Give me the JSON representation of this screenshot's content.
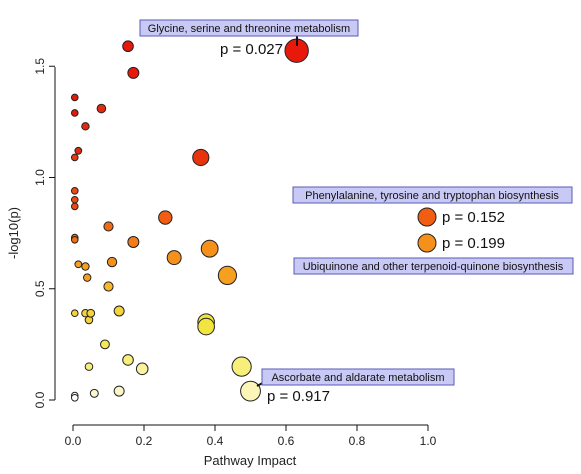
{
  "chart_data": {
    "type": "scatter",
    "xlabel": "Pathway Impact",
    "ylabel": "-log10(p)",
    "xlim": [
      0.0,
      1.0
    ],
    "ylim": [
      0.0,
      1.6
    ],
    "xticks": [
      "0.0",
      "0.2",
      "0.4",
      "0.6",
      "0.8",
      "1.0"
    ],
    "yticks": [
      "0.0",
      "0.5",
      "1.0",
      "1.5"
    ],
    "points": [
      {
        "x": 0.63,
        "y": 1.57,
        "color": "#e8190b"
      },
      {
        "x": 0.155,
        "y": 1.59,
        "color": "#e8190b"
      },
      {
        "x": 0.17,
        "y": 1.47,
        "color": "#e8190b"
      },
      {
        "x": 0.005,
        "y": 1.36,
        "color": "#e11a0a"
      },
      {
        "x": 0.08,
        "y": 1.31,
        "color": "#e32a0f"
      },
      {
        "x": 0.005,
        "y": 1.29,
        "color": "#e11a0a"
      },
      {
        "x": 0.035,
        "y": 1.23,
        "color": "#e32a0f"
      },
      {
        "x": 0.015,
        "y": 1.12,
        "color": "#e32a0f"
      },
      {
        "x": 0.005,
        "y": 1.09,
        "color": "#e83a10"
      },
      {
        "x": 0.36,
        "y": 1.09,
        "color": "#e8330f"
      },
      {
        "x": 0.005,
        "y": 0.94,
        "color": "#ed4a12"
      },
      {
        "x": 0.005,
        "y": 0.9,
        "color": "#ed4a12"
      },
      {
        "x": 0.005,
        "y": 0.87,
        "color": "#ed4a12"
      },
      {
        "x": 0.26,
        "y": 0.82,
        "color": "#f05d13"
      },
      {
        "x": 0.1,
        "y": 0.78,
        "color": "#f06a15"
      },
      {
        "x": 0.005,
        "y": 0.73,
        "color": "#f07015"
      },
      {
        "x": 0.005,
        "y": 0.72,
        "color": "#f07015"
      },
      {
        "x": 0.17,
        "y": 0.71,
        "color": "#f37b18"
      },
      {
        "x": 0.385,
        "y": 0.68,
        "color": "#f5901a"
      },
      {
        "x": 0.285,
        "y": 0.64,
        "color": "#f5901a"
      },
      {
        "x": 0.11,
        "y": 0.62,
        "color": "#f5901a"
      },
      {
        "x": 0.015,
        "y": 0.61,
        "color": "#f7a01f"
      },
      {
        "x": 0.035,
        "y": 0.6,
        "color": "#f7a01f"
      },
      {
        "x": 0.435,
        "y": 0.56,
        "color": "#f7a01f"
      },
      {
        "x": 0.04,
        "y": 0.55,
        "color": "#f7a01f"
      },
      {
        "x": 0.1,
        "y": 0.51,
        "color": "#f9b72a"
      },
      {
        "x": 0.005,
        "y": 0.39,
        "color": "#f5d33a"
      },
      {
        "x": 0.035,
        "y": 0.39,
        "color": "#f5d33a"
      },
      {
        "x": 0.05,
        "y": 0.39,
        "color": "#f5d33a"
      },
      {
        "x": 0.13,
        "y": 0.4,
        "color": "#f5d33a"
      },
      {
        "x": 0.045,
        "y": 0.36,
        "color": "#f5d33a"
      },
      {
        "x": 0.375,
        "y": 0.35,
        "color": "#f2e53f"
      },
      {
        "x": 0.375,
        "y": 0.33,
        "color": "#f2e53f"
      },
      {
        "x": 0.09,
        "y": 0.25,
        "color": "#f4ea55"
      },
      {
        "x": 0.155,
        "y": 0.18,
        "color": "#f7ef7a"
      },
      {
        "x": 0.045,
        "y": 0.15,
        "color": "#f7ef7a"
      },
      {
        "x": 0.475,
        "y": 0.15,
        "color": "#f7ef7a"
      },
      {
        "x": 0.195,
        "y": 0.14,
        "color": "#f9f3a0"
      },
      {
        "x": 0.5,
        "y": 0.04,
        "color": "#fbf6b8"
      },
      {
        "x": 0.13,
        "y": 0.04,
        "color": "#fbf6c8"
      },
      {
        "x": 0.06,
        "y": 0.03,
        "color": "#fbf6d0"
      },
      {
        "x": 0.005,
        "y": 0.02,
        "color": "#ffffff"
      },
      {
        "x": 0.005,
        "y": 0.01,
        "color": "#ffffff"
      }
    ],
    "annotations": [
      {
        "label": "Glycine, serine and threonine metabolism",
        "pvalue": "p = 0.027",
        "x": 0.63,
        "y": 1.57
      },
      {
        "label": "Phenylalanine, tyrosine and tryptophan biosynthesis",
        "pvalue": "p = 0.152"
      },
      {
        "label": "Ubiquinone and other terpenoid-quinone biosynthesis",
        "pvalue": "p = 0.199"
      },
      {
        "label": "Ascorbate and aldarate metabolism",
        "pvalue": "p = 0.917",
        "x": 0.5,
        "y": 0.04
      }
    ],
    "colors": {
      "label_box_fill": "#c9c9f5",
      "label_box_stroke": "#5a5ab8",
      "marker_p152": "#f05d13",
      "marker_p199": "#f5901a"
    }
  }
}
